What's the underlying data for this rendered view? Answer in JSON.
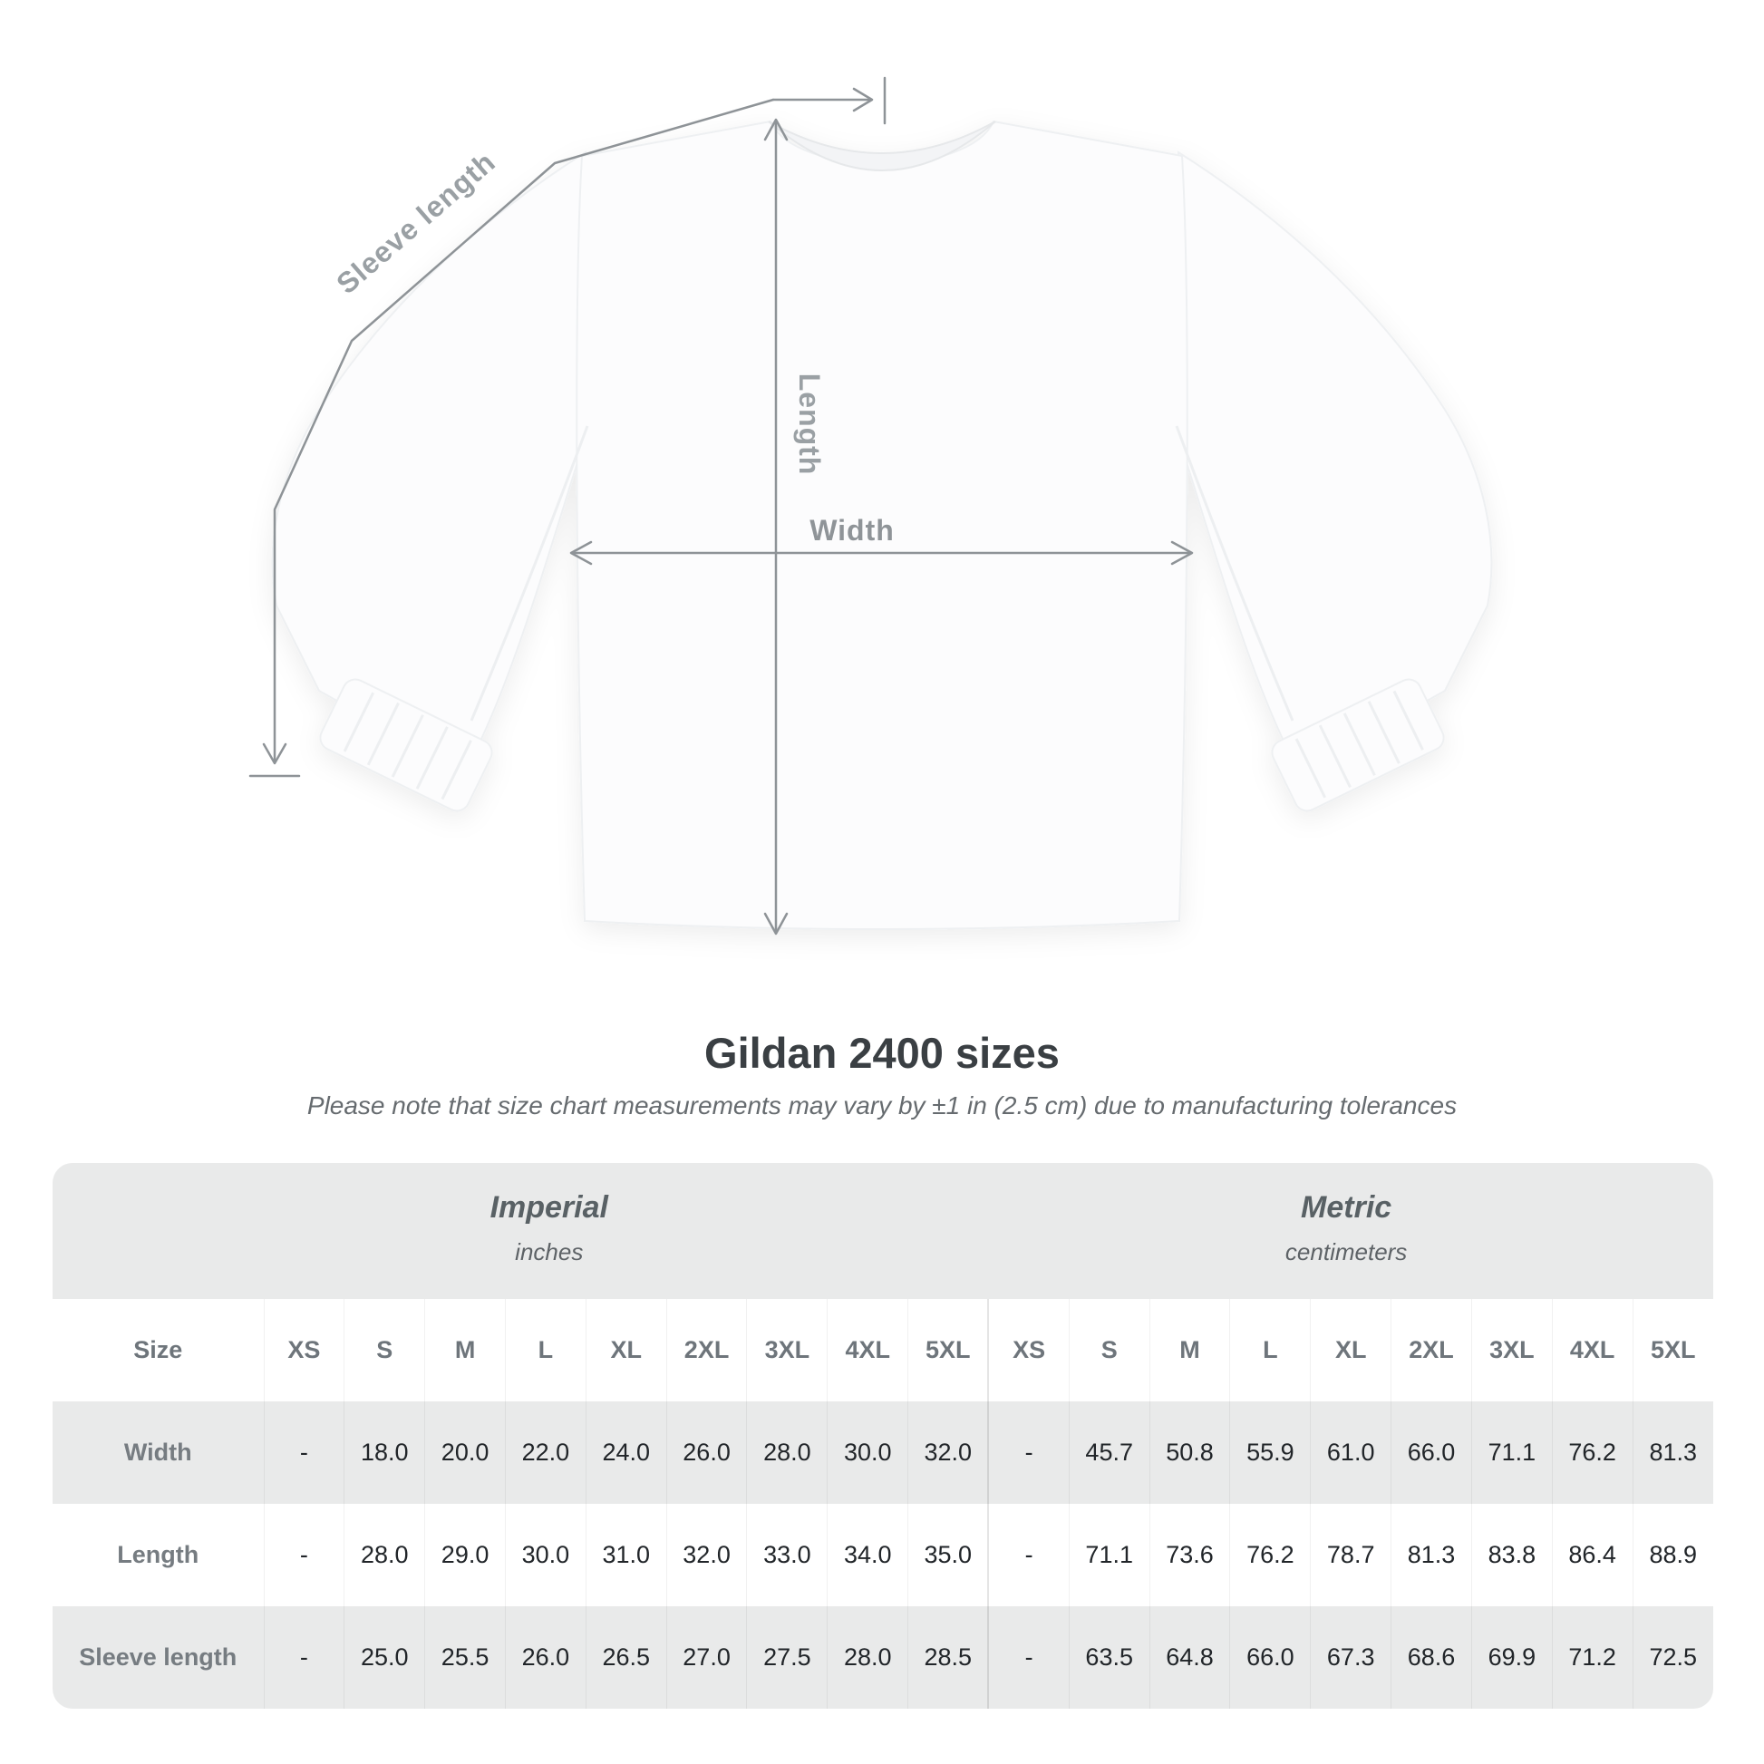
{
  "figure": {
    "labels": {
      "sleeve_length": "Sleeve length",
      "length": "Length",
      "width": "Width"
    },
    "colors": {
      "annotation_line": "#8e9397",
      "annotation_text": "#9aa0a4",
      "stripe_gray": "#e9eaea"
    }
  },
  "title": "Gildan 2400 sizes",
  "subtitle": "Please note that size chart measurements may vary by ±1 in (2.5 cm) due to manufacturing tolerances",
  "table": {
    "corner_label": "Size",
    "groups": [
      {
        "title": "Imperial",
        "subtitle": "inches"
      },
      {
        "title": "Metric",
        "subtitle": "centimeters"
      }
    ],
    "size_columns": [
      "XS",
      "S",
      "M",
      "L",
      "XL",
      "2XL",
      "3XL",
      "4XL",
      "5XL"
    ],
    "rows": [
      {
        "label": "Width",
        "imperial": [
          "-",
          "18.0",
          "20.0",
          "22.0",
          "24.0",
          "26.0",
          "28.0",
          "30.0",
          "32.0"
        ],
        "metric": [
          "-",
          "45.7",
          "50.8",
          "55.9",
          "61.0",
          "66.0",
          "71.1",
          "76.2",
          "81.3"
        ]
      },
      {
        "label": "Length",
        "imperial": [
          "-",
          "28.0",
          "29.0",
          "30.0",
          "31.0",
          "32.0",
          "33.0",
          "34.0",
          "35.0"
        ],
        "metric": [
          "-",
          "71.1",
          "73.6",
          "76.2",
          "78.7",
          "81.3",
          "83.8",
          "86.4",
          "88.9"
        ]
      },
      {
        "label": "Sleeve length",
        "imperial": [
          "-",
          "25.0",
          "25.5",
          "26.0",
          "26.5",
          "27.0",
          "27.5",
          "28.0",
          "28.5"
        ],
        "metric": [
          "-",
          "63.5",
          "64.8",
          "66.0",
          "67.3",
          "68.6",
          "69.9",
          "71.2",
          "72.5"
        ]
      }
    ]
  }
}
